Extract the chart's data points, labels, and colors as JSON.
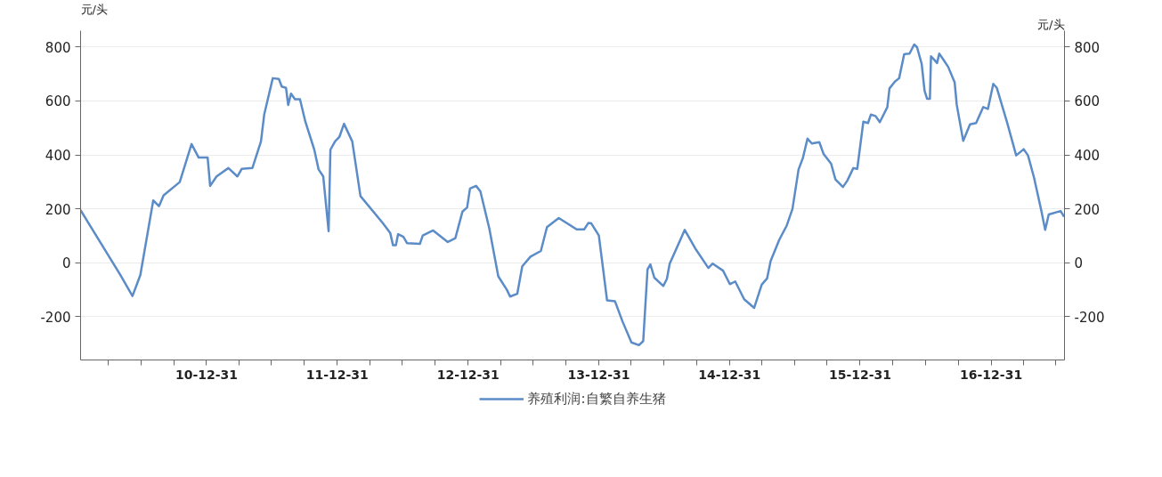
{
  "chart_data": {
    "type": "line",
    "ylabel": "元/头",
    "y2label": "元/头",
    "legend": "bottom",
    "grid": "y",
    "marker": "none",
    "line_style": "solid",
    "x": [
      "2010-01-13",
      "2010-05-04",
      "2010-06-07",
      "2010-06-29",
      "2010-08-04",
      "2010-08-20",
      "2010-09-02",
      "2010-10-17",
      "2010-11-19",
      "2010-12-09",
      "2011-01-03",
      "2011-01-10",
      "2011-01-28",
      "2011-03-02",
      "2011-03-27",
      "2011-04-08",
      "2011-05-08",
      "2011-06-01",
      "2011-06-10",
      "2011-06-22",
      "2011-07-04",
      "2011-07-21",
      "2011-07-29",
      "2011-08-10",
      "2011-08-16",
      "2011-08-24",
      "2011-09-04",
      "2011-09-18",
      "2011-10-03",
      "2011-10-28",
      "2011-11-09",
      "2011-11-22",
      "2011-12-07",
      "2011-12-12",
      "2011-12-25",
      "2012-01-06",
      "2012-01-19",
      "2012-02-11",
      "2012-03-05",
      "2012-05-06",
      "2012-05-27",
      "2012-06-04",
      "2012-06-12",
      "2012-06-18",
      "2012-07-03",
      "2012-07-13",
      "2012-08-18",
      "2012-08-26",
      "2012-09-24",
      "2012-11-04",
      "2012-11-25",
      "2012-12-15",
      "2012-12-28",
      "2013-01-05",
      "2013-01-22",
      "2013-02-03",
      "2013-02-28",
      "2013-03-25",
      "2013-04-18",
      "2013-04-27",
      "2013-05-17",
      "2013-05-31",
      "2013-06-23",
      "2013-07-22",
      "2013-08-08",
      "2013-09-10",
      "2013-10-30",
      "2013-11-20",
      "2013-12-02",
      "2013-12-10",
      "2013-12-31",
      "2014-01-23",
      "2014-02-14",
      "2014-03-07",
      "2014-04-01",
      "2014-04-22",
      "2014-05-04",
      "2014-05-16",
      "2014-05-24",
      "2014-06-04",
      "2014-06-29",
      "2014-07-09",
      "2014-07-17",
      "2014-08-28",
      "2014-09-26",
      "2014-11-02",
      "2014-11-14",
      "2014-12-13",
      "2015-01-01",
      "2015-01-16",
      "2015-02-10",
      "2015-03-10",
      "2015-03-31",
      "2015-04-15",
      "2015-04-25",
      "2015-05-19",
      "2015-06-09",
      "2015-06-25",
      "2015-07-12",
      "2015-07-24",
      "2015-08-06",
      "2015-08-18",
      "2015-09-08",
      "2015-09-20",
      "2015-10-11",
      "2015-10-23",
      "2015-11-13",
      "2015-11-25",
      "2015-12-12",
      "2015-12-23",
      "2016-01-09",
      "2016-01-22",
      "2016-01-30",
      "2016-02-12",
      "2016-02-24",
      "2016-03-16",
      "2016-03-22",
      "2016-04-06",
      "2016-04-18",
      "2016-05-02",
      "2016-05-17",
      "2016-05-30",
      "2016-06-07",
      "2016-06-20",
      "2016-06-28",
      "2016-07-05",
      "2016-07-13",
      "2016-07-16",
      "2016-07-24",
      "2016-08-02",
      "2016-08-08",
      "2016-08-20",
      "2016-09-02",
      "2016-09-20",
      "2016-09-26",
      "2016-10-14",
      "2016-11-02",
      "2016-11-19",
      "2016-12-09",
      "2016-12-22",
      "2017-01-06",
      "2017-01-16",
      "2017-02-14",
      "2017-03-11",
      "2017-04-01",
      "2017-04-13",
      "2017-04-30",
      "2017-05-20",
      "2017-05-31",
      "2017-06-10",
      "2017-07-13",
      "2017-07-23"
    ],
    "series": [
      {
        "name": "养殖利润:自繁自养生猪",
        "color": "#5b8cc8",
        "values": [
          195,
          -45,
          -123,
          -45,
          231,
          210,
          250,
          299,
          440,
          390,
          390,
          285,
          320,
          351,
          320,
          348,
          351,
          450,
          549,
          617,
          684,
          681,
          653,
          648,
          585,
          627,
          606,
          606,
          523,
          419,
          346,
          320,
          117,
          419,
          450,
          466,
          515,
          450,
          247,
          148,
          111,
          65,
          65,
          106,
          96,
          73,
          70,
          101,
          120,
          77,
          91,
          190,
          205,
          275,
          285,
          265,
          127,
          -50,
          -100,
          -125,
          -115,
          -13,
          23,
          44,
          132,
          166,
          124,
          124,
          148,
          146,
          101,
          -139,
          -142,
          -217,
          -295,
          -305,
          -290,
          -24,
          -6,
          -55,
          -86,
          -60,
          -3,
          122,
          54,
          -19,
          -3,
          -29,
          -79,
          -69,
          -135,
          -167,
          -81,
          -58,
          7,
          85,
          138,
          200,
          346,
          388,
          460,
          442,
          447,
          403,
          367,
          309,
          281,
          304,
          351,
          348,
          523,
          518,
          549,
          544,
          521,
          577,
          646,
          671,
          684,
          773,
          775,
          809,
          799,
          737,
          638,
          608,
          608,
          765,
          754,
          740,
          775,
          752,
          726,
          669,
          585,
          452,
          513,
          518,
          577,
          570,
          663,
          648,
          518,
          398,
          421,
          398,
          315,
          195,
          122,
          179,
          192,
          171
        ]
      }
    ],
    "xlim": [
      "2010-01-13",
      "2017-07-24"
    ],
    "xticks": [
      {
        "value": "2010-03-31",
        "label": null
      },
      {
        "value": "2010-06-30",
        "label": null
      },
      {
        "value": "2010-09-30",
        "label": null
      },
      {
        "value": "2010-12-31",
        "label": "10-12-31"
      },
      {
        "value": "2011-03-31",
        "label": null
      },
      {
        "value": "2011-06-30",
        "label": null
      },
      {
        "value": "2011-09-30",
        "label": null
      },
      {
        "value": "2011-12-31",
        "label": "11-12-31"
      },
      {
        "value": "2012-03-31",
        "label": null
      },
      {
        "value": "2012-06-30",
        "label": null
      },
      {
        "value": "2012-09-30",
        "label": null
      },
      {
        "value": "2012-12-31",
        "label": "12-12-31"
      },
      {
        "value": "2013-03-31",
        "label": null
      },
      {
        "value": "2013-06-30",
        "label": null
      },
      {
        "value": "2013-09-30",
        "label": null
      },
      {
        "value": "2013-12-31",
        "label": "13-12-31"
      },
      {
        "value": "2014-03-31",
        "label": null
      },
      {
        "value": "2014-06-30",
        "label": null
      },
      {
        "value": "2014-09-30",
        "label": null
      },
      {
        "value": "2014-12-31",
        "label": "14-12-31"
      },
      {
        "value": "2015-03-31",
        "label": null
      },
      {
        "value": "2015-06-30",
        "label": null
      },
      {
        "value": "2015-09-30",
        "label": null
      },
      {
        "value": "2015-12-31",
        "label": "15-12-31"
      },
      {
        "value": "2016-03-31",
        "label": null
      },
      {
        "value": "2016-06-30",
        "label": null
      },
      {
        "value": "2016-09-30",
        "label": null
      },
      {
        "value": "2016-12-31",
        "label": "16-12-31"
      },
      {
        "value": "2017-03-31",
        "label": null
      },
      {
        "value": "2017-06-30",
        "label": null
      }
    ],
    "ylim": [
      -360,
      860
    ],
    "yticks": [
      -200,
      0,
      200,
      400,
      600,
      800
    ],
    "y2lim": [
      -360,
      860
    ],
    "y2ticks": [
      -200,
      0,
      200,
      400,
      600,
      800
    ]
  }
}
